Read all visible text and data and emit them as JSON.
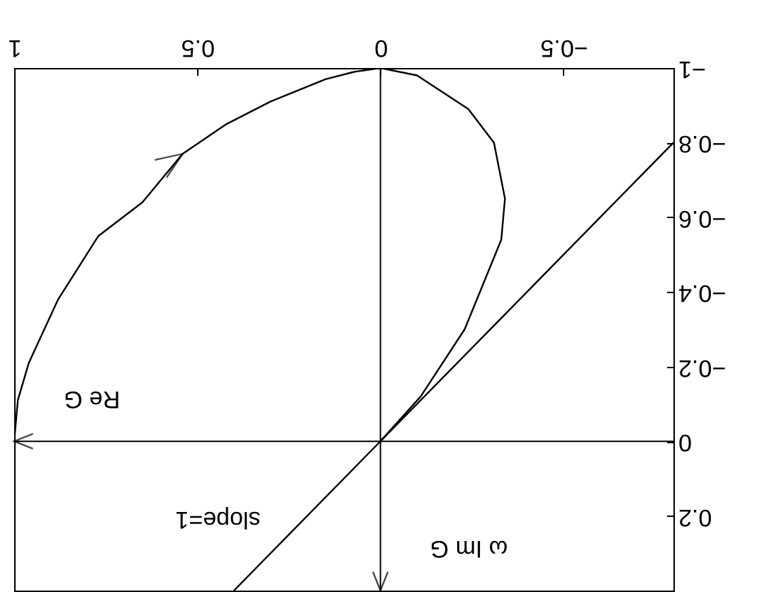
{
  "chart_data": {
    "type": "line",
    "xlim": [
      1,
      -0.8
    ],
    "ylim": [
      0.4,
      -1
    ],
    "xticks": [
      -0.5,
      0,
      0.5,
      1
    ],
    "yticks": [
      -1,
      -0.8,
      -0.6,
      -0.4,
      -0.2,
      0,
      0.2
    ],
    "grid": false,
    "series": [
      {
        "color": "#000000",
        "x": [
          1,
          0.99,
          0.96,
          0.88,
          0.77,
          0.65,
          0.54,
          0.42,
          0.3,
          0.15,
          0.07,
          0,
          -0.1,
          -0.24,
          -0.31,
          -0.34,
          -0.33,
          -0.28,
          -0.23,
          -0.11,
          0
        ],
        "values": [
          0,
          -0.11,
          -0.21,
          -0.38,
          -0.55,
          -0.64,
          -0.77,
          -0.85,
          -0.91,
          -0.97,
          -0.99,
          -1,
          -0.98,
          -0.89,
          -0.8,
          -0.65,
          -0.54,
          -0.42,
          -0.3,
          -0.12,
          0
        ]
      },
      {
        "color": "#000000",
        "x": [
          -0.8,
          0.4
        ],
        "values": [
          -0.8,
          0.4
        ]
      }
    ],
    "ref_lines": [
      {
        "axis": "y",
        "value": 0,
        "label": "Re G"
      },
      {
        "axis": "x",
        "value": 0,
        "label": "ω Im G"
      }
    ],
    "annotations": [
      {
        "text": "slope=1",
        "x": 0.25,
        "y": 0.25
      }
    ]
  }
}
